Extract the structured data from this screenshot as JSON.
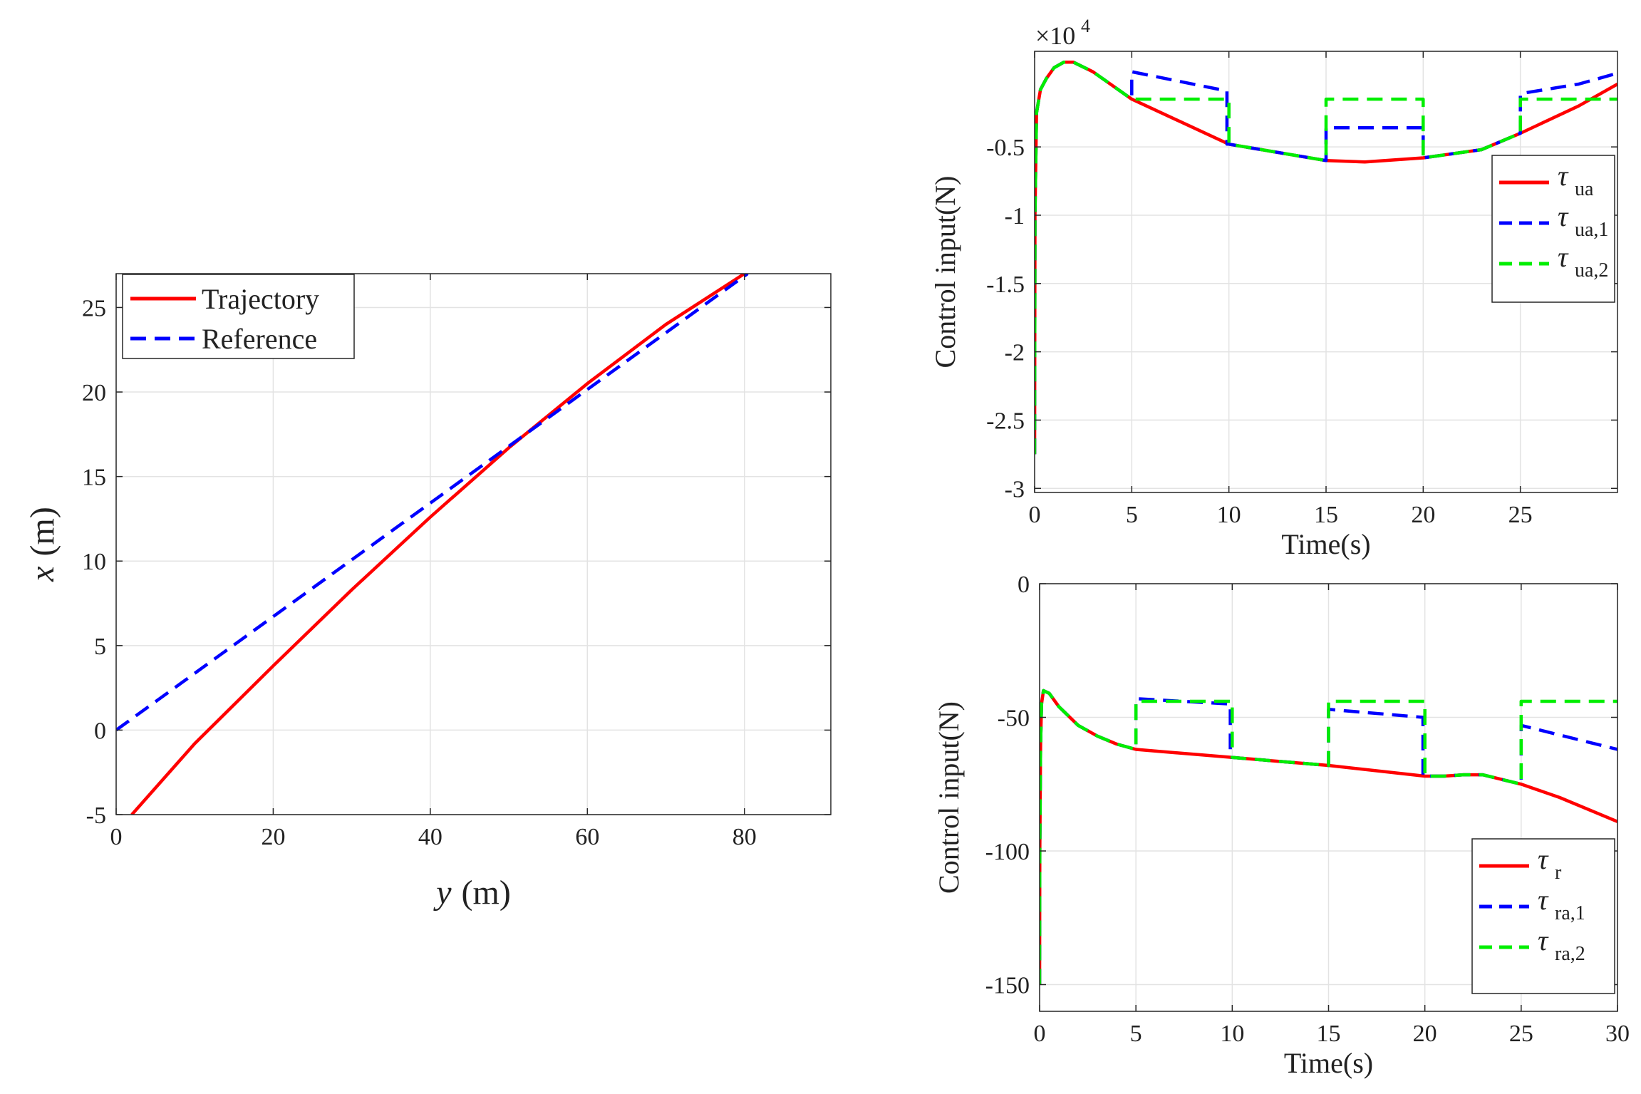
{
  "chart_data": [
    {
      "id": "traj",
      "type": "line",
      "xlabel_var": "y",
      "xlabel_unit": "(m)",
      "ylabel_var": "x",
      "ylabel_unit": "(m)",
      "xlim": [
        0,
        91
      ],
      "ylim": [
        -5,
        27
      ],
      "xticks": [
        0,
        20,
        40,
        60,
        80
      ],
      "xtick_labels": [
        "0",
        "20",
        "40",
        "60",
        "80"
      ],
      "yticks": [
        -5,
        0,
        5,
        10,
        15,
        20,
        25
      ],
      "ytick_labels": [
        "-5",
        "0",
        "5",
        "10",
        "15",
        "20",
        "25"
      ],
      "grid": true,
      "legend_position": "top-left",
      "series": [
        {
          "name": "Trajectory",
          "color": "#ff0000",
          "style": "solid",
          "x": [
            2,
            10,
            20,
            30,
            40,
            50,
            60,
            70,
            80
          ],
          "y": [
            -5,
            -0.8,
            3.8,
            8.3,
            12.6,
            16.7,
            20.5,
            24.0,
            27
          ]
        },
        {
          "name": "Reference",
          "color": "#0000ff",
          "style": "dashed",
          "x": [
            0,
            80.4
          ],
          "y": [
            0,
            27
          ]
        }
      ]
    },
    {
      "id": "tau_ua",
      "type": "line",
      "ylabel": "Control input(N)",
      "xlabel": "Time(s)",
      "exponent_label": "×10",
      "exponent_power": "4",
      "xlim": [
        0,
        30
      ],
      "ylim": [
        -3.03,
        0.2
      ],
      "xticks": [
        0,
        5,
        10,
        15,
        20,
        25
      ],
      "xtick_labels": [
        "0",
        "5",
        "10",
        "15",
        "20",
        "25"
      ],
      "yticks": [
        -0.5,
        -1,
        -1.5,
        -2,
        -2.5,
        -3
      ],
      "ytick_labels": [
        "-0.5",
        "-1",
        "-1.5",
        "-2",
        "-2.5",
        "-3"
      ],
      "grid": true,
      "legend_position": "right",
      "series": [
        {
          "name": "τ",
          "sub": "ua",
          "color": "#ff0000",
          "style": "solid",
          "x": [
            0,
            0.02,
            0.1,
            0.3,
            0.6,
            1.0,
            1.5,
            2.0,
            3,
            5,
            10,
            15,
            17,
            20,
            23,
            25,
            28,
            30
          ],
          "y": [
            -2.75,
            -1.0,
            -0.25,
            -0.08,
            0.0,
            0.08,
            0.12,
            0.12,
            0.05,
            -0.15,
            -0.48,
            -0.6,
            -0.61,
            -0.58,
            -0.52,
            -0.4,
            -0.2,
            -0.04
          ]
        },
        {
          "name": "τ",
          "sub": "ua,1",
          "color": "#0000ff",
          "style": "dashed",
          "x": [
            0,
            0.02,
            0.1,
            0.3,
            0.6,
            1.0,
            1.5,
            2.0,
            3,
            5,
            5,
            9.9,
            9.9,
            10,
            15,
            15,
            20,
            20,
            23,
            25,
            25,
            28,
            30
          ],
          "y": [
            -2.75,
            -1.0,
            -0.25,
            -0.08,
            0.0,
            0.08,
            0.12,
            0.12,
            0.05,
            -0.15,
            0.05,
            -0.09,
            -0.48,
            -0.48,
            -0.6,
            -0.36,
            -0.36,
            -0.58,
            -0.52,
            -0.4,
            -0.11,
            -0.04,
            0.04
          ]
        },
        {
          "name": "τ",
          "sub": "ua,2",
          "color": "#00ee00",
          "style": "dashed",
          "x": [
            0,
            0.02,
            0.1,
            0.3,
            0.6,
            1.0,
            1.5,
            2.0,
            3,
            5,
            5,
            10,
            10,
            15,
            15,
            20,
            20,
            23,
            25,
            25,
            30
          ],
          "y": [
            -2.75,
            -1.0,
            -0.25,
            -0.08,
            0.0,
            0.08,
            0.12,
            0.12,
            0.05,
            -0.15,
            -0.15,
            -0.15,
            -0.48,
            -0.6,
            -0.15,
            -0.15,
            -0.58,
            -0.52,
            -0.4,
            -0.15,
            -0.15
          ]
        }
      ]
    },
    {
      "id": "tau_r",
      "type": "line",
      "ylabel": "Control input(N)",
      "xlabel": "Time(s)",
      "xlim": [
        0,
        30
      ],
      "ylim": [
        -160,
        0
      ],
      "xticks": [
        0,
        5,
        10,
        15,
        20,
        25,
        30
      ],
      "xtick_labels": [
        "0",
        "5",
        "10",
        "15",
        "20",
        "25",
        "30"
      ],
      "yticks": [
        0,
        -50,
        -100,
        -150
      ],
      "ytick_labels": [
        "0",
        "-50",
        "-100",
        "-150"
      ],
      "grid": true,
      "legend_position": "bottom-right",
      "series": [
        {
          "name": "τ",
          "sub": "r",
          "color": "#ff0000",
          "style": "solid",
          "x": [
            0,
            0.01,
            0.05,
            0.1,
            0.2,
            0.5,
            1,
            2,
            3,
            4,
            5,
            10,
            15,
            20,
            21,
            22,
            23,
            25,
            27,
            30
          ],
          "y": [
            -150,
            -100,
            -60,
            -45,
            -40,
            -41,
            -46,
            -53,
            -57,
            -60,
            -62,
            -65,
            -68,
            -72,
            -72,
            -71.5,
            -71.5,
            -75,
            -80,
            -89
          ]
        },
        {
          "name": "τ",
          "sub": "ra,1",
          "color": "#0000ff",
          "style": "dashed",
          "x": [
            0,
            0.01,
            0.05,
            0.1,
            0.2,
            0.5,
            1,
            2,
            3,
            4,
            5,
            5,
            9.9,
            9.9,
            10,
            15,
            15,
            19.9,
            19.9,
            20,
            21,
            22,
            23,
            25,
            25,
            30
          ],
          "y": [
            -150,
            -100,
            -60,
            -45,
            -40,
            -41,
            -46,
            -53,
            -57,
            -60,
            -62,
            -43,
            -45,
            -65,
            -65,
            -68,
            -47,
            -50,
            -72,
            -72,
            -72,
            -71.5,
            -71.5,
            -75,
            -53,
            -62
          ]
        },
        {
          "name": "τ",
          "sub": "ra,2",
          "color": "#00ee00",
          "style": "dashed",
          "x": [
            0,
            0.01,
            0.05,
            0.1,
            0.2,
            0.5,
            1,
            2,
            3,
            4,
            5,
            5,
            10,
            10,
            15,
            15,
            20,
            20,
            21,
            22,
            23,
            25,
            25,
            30
          ],
          "y": [
            -150,
            -100,
            -60,
            -45,
            -40,
            -41,
            -46,
            -53,
            -57,
            -60,
            -62,
            -44,
            -44,
            -65,
            -68,
            -44,
            -44,
            -72,
            -72,
            -71.5,
            -71.5,
            -75,
            -44,
            -44
          ]
        }
      ]
    }
  ]
}
